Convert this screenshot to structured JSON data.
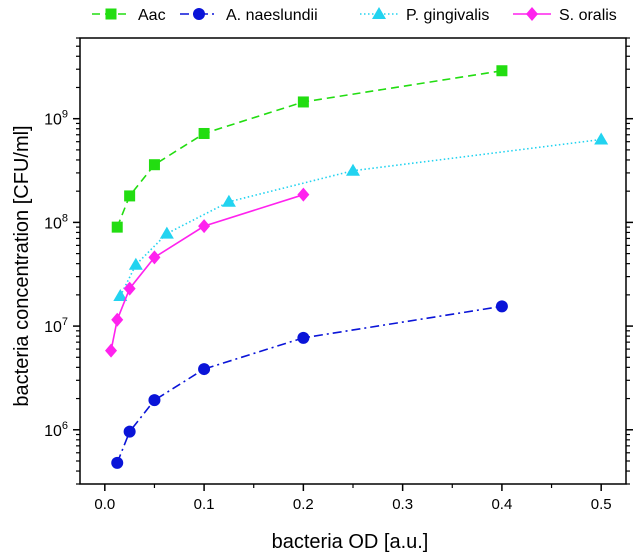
{
  "chart_data": {
    "type": "line",
    "xlabel": "bacteria OD [a.u.]",
    "ylabel": "bacteria concentration [CFU/ml]",
    "xlim": [
      -0.025,
      0.525
    ],
    "ylim": [
      300000,
      6000000000
    ],
    "yscale": "log",
    "grid": false,
    "legend_position": "top",
    "x_ticks": [
      0.0,
      0.1,
      0.2,
      0.3,
      0.4,
      0.5
    ],
    "x_tick_labels": [
      "0.0",
      "0.1",
      "0.2",
      "0.3",
      "0.4",
      "0.5"
    ],
    "y_ticks": [
      {
        "value": 1000000,
        "base": "10",
        "exp": "6"
      },
      {
        "value": 10000000,
        "base": "10",
        "exp": "7"
      },
      {
        "value": 100000000,
        "base": "10",
        "exp": "8"
      },
      {
        "value": 1000000000,
        "base": "10",
        "exp": "9"
      }
    ],
    "series": [
      {
        "name": "Aac",
        "color": "#22dd11",
        "marker": "square",
        "line_style": "dashed",
        "x": [
          0.0125,
          0.025,
          0.05,
          0.1,
          0.2,
          0.4
        ],
        "y": [
          90000000,
          180000000,
          360000000,
          720000000,
          1450000000,
          2900000000
        ]
      },
      {
        "name": "A. naeslundii",
        "color": "#0a14d8",
        "marker": "circle",
        "line_style": "dashdot",
        "x": [
          0.0125,
          0.025,
          0.05,
          0.1,
          0.2,
          0.4
        ],
        "y": [
          480000,
          960000,
          1930000,
          3850000,
          7700000,
          15500000
        ]
      },
      {
        "name": "P. gingivalis",
        "color": "#22d3f0",
        "marker": "triangle",
        "line_style": "dotted",
        "x": [
          0.0156,
          0.03125,
          0.0625,
          0.125,
          0.25,
          0.5
        ],
        "y": [
          19500000,
          39000000,
          78000000,
          158000000,
          315000000,
          630000000
        ]
      },
      {
        "name": "S. oralis",
        "color": "#ff22ee",
        "marker": "diamond",
        "line_style": "solid",
        "x": [
          0.00625,
          0.0125,
          0.025,
          0.05,
          0.1,
          0.2
        ],
        "y": [
          5800000,
          11500000,
          23000000,
          46000000,
          92000000,
          185000000
        ]
      }
    ]
  }
}
